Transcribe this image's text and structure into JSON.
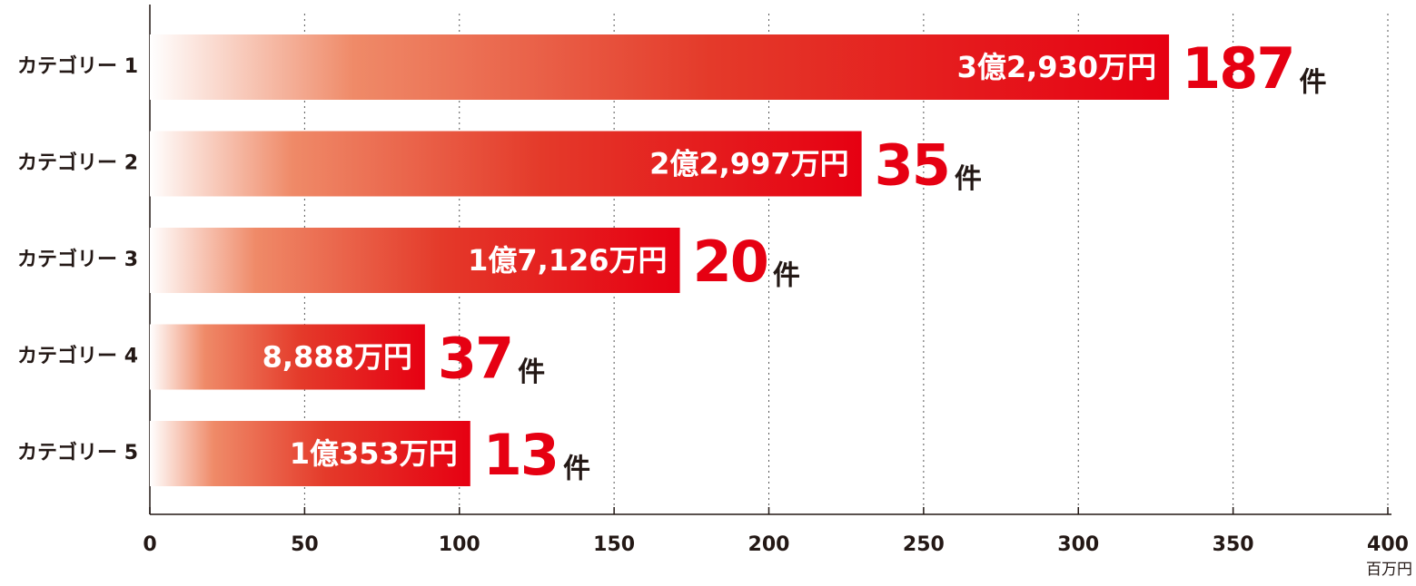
{
  "chart_data": {
    "type": "hbar",
    "categories": [
      "カテゴリー 1",
      "カテゴリー 2",
      "カテゴリー 3",
      "カテゴリー 4",
      "カテゴリー 5"
    ],
    "values": [
      329.3,
      229.97,
      171.26,
      88.88,
      103.53
    ],
    "value_labels": [
      "3億2,930万円",
      "2億2,997万円",
      "1億7,126万円",
      "8,888万円",
      "1億353万円"
    ],
    "counts": [
      187,
      35,
      20,
      37,
      13
    ],
    "count_unit": "件",
    "color": "#e60012",
    "xlim": [
      0,
      400
    ],
    "xticks": [
      0,
      50,
      100,
      150,
      200,
      250,
      300,
      350,
      400
    ],
    "x_unit": "百万円",
    "grid": true
  }
}
